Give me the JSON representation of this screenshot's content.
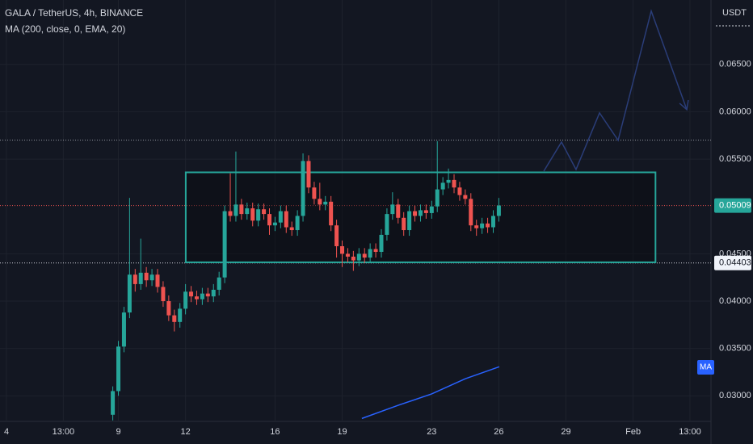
{
  "chart_data": {
    "type": "candlestick",
    "title": "GALA / TetherUS, 4h, BINANCE",
    "indicator": "MA (200, close, 0, EMA, 20)",
    "currency": "USDT",
    "ma_tag": "MA",
    "up_color": "#26a69a",
    "down_color": "#ef5350",
    "grid": true,
    "xlim": [
      3.71,
      35.48
    ],
    "ylim": [
      0.0273,
      0.0718
    ],
    "xticks": [
      4,
      {
        "value": 6.54,
        "label": "13:00"
      },
      9,
      12,
      16,
      19,
      23,
      26,
      29,
      {
        "value": 32,
        "label": "Feb"
      },
      {
        "value": 34.54,
        "label": "13:00"
      }
    ],
    "yticks": [
      {
        "value": 0.03,
        "label": "0.03000"
      },
      {
        "value": 0.035,
        "label": "0.03500"
      },
      {
        "value": 0.04,
        "label": "0.04000"
      },
      {
        "value": 0.045,
        "label": "0.04500"
      },
      {
        "value": 0.055,
        "label": "0.05500"
      },
      {
        "value": 0.06,
        "label": "0.06000"
      },
      {
        "value": 0.065,
        "label": "0.06500"
      }
    ],
    "x": [
      8.75,
      9,
      9.25,
      9.5,
      9.75,
      10,
      10.25,
      10.5,
      10.75,
      11,
      11.25,
      11.5,
      11.75,
      12,
      12.25,
      12.5,
      12.75,
      13,
      13.25,
      13.5,
      13.75,
      14,
      14.25,
      14.5,
      14.75,
      15,
      15.25,
      15.5,
      15.75,
      16,
      16.25,
      16.5,
      16.75,
      17,
      17.25,
      17.5,
      17.75,
      18,
      18.25,
      18.5,
      18.75,
      19,
      19.25,
      19.5,
      19.75,
      20,
      20.25,
      20.5,
      20.75,
      21,
      21.25,
      21.5,
      21.75,
      22,
      22.25,
      22.5,
      22.75,
      23,
      23.25,
      23.5,
      23.75,
      24,
      24.25,
      24.5,
      24.75,
      25,
      25.25,
      25.5,
      25.75,
      26
    ],
    "open": [
      0.028,
      0.0305,
      0.0352,
      0.0388,
      0.0428,
      0.0418,
      0.043,
      0.0422,
      0.0428,
      0.0415,
      0.04,
      0.0385,
      0.0378,
      0.0392,
      0.041,
      0.0405,
      0.0402,
      0.0408,
      0.0405,
      0.0412,
      0.0425,
      0.0495,
      0.049,
      0.0502,
      0.0492,
      0.0498,
      0.0485,
      0.0497,
      0.0492,
      0.048,
      0.0483,
      0.0495,
      0.0478,
      0.0475,
      0.049,
      0.0548,
      0.052,
      0.0508,
      0.0502,
      0.0505,
      0.048,
      0.0458,
      0.045,
      0.0447,
      0.0443,
      0.045,
      0.0446,
      0.0455,
      0.0452,
      0.047,
      0.0492,
      0.0502,
      0.0488,
      0.0475,
      0.0495,
      0.049,
      0.0496,
      0.0493,
      0.05,
      0.0518,
      0.0525,
      0.0528,
      0.052,
      0.0512,
      0.0508,
      0.048,
      0.0477,
      0.0482,
      0.0478,
      0.049
    ],
    "high": [
      0.031,
      0.0358,
      0.0394,
      0.0509,
      0.0434,
      0.0466,
      0.0436,
      0.0434,
      0.0434,
      0.0421,
      0.0406,
      0.0391,
      0.0398,
      0.0418,
      0.0416,
      0.0411,
      0.0414,
      0.0414,
      0.0418,
      0.0431,
      0.0501,
      0.0535,
      0.0558,
      0.0508,
      0.0504,
      0.0504,
      0.0503,
      0.0503,
      0.0498,
      0.0489,
      0.0501,
      0.0501,
      0.0484,
      0.0496,
      0.0556,
      0.0554,
      0.0526,
      0.0525,
      0.0511,
      0.0511,
      0.0486,
      0.0464,
      0.0456,
      0.0453,
      0.0456,
      0.0456,
      0.0461,
      0.0461,
      0.0476,
      0.0498,
      0.0515,
      0.0508,
      0.0494,
      0.0501,
      0.0501,
      0.0502,
      0.0502,
      0.0506,
      0.0569,
      0.0531,
      0.054,
      0.0534,
      0.0526,
      0.0518,
      0.0514,
      0.0486,
      0.0488,
      0.0488,
      0.0496,
      0.0509
    ],
    "low": [
      0.0274,
      0.03,
      0.0346,
      0.0382,
      0.041,
      0.0412,
      0.0415,
      0.0416,
      0.0409,
      0.0394,
      0.0379,
      0.0368,
      0.0372,
      0.0386,
      0.0399,
      0.0396,
      0.0396,
      0.0399,
      0.0399,
      0.0406,
      0.0419,
      0.0484,
      0.0484,
      0.0486,
      0.0486,
      0.0479,
      0.0479,
      0.0486,
      0.047,
      0.0474,
      0.0477,
      0.0472,
      0.0469,
      0.0469,
      0.0484,
      0.0514,
      0.0502,
      0.0496,
      0.0496,
      0.0474,
      0.0446,
      0.0436,
      0.0441,
      0.0432,
      0.0437,
      0.044,
      0.044,
      0.0446,
      0.0446,
      0.0464,
      0.0486,
      0.0482,
      0.0469,
      0.0469,
      0.0484,
      0.0484,
      0.0487,
      0.0487,
      0.0494,
      0.0512,
      0.0519,
      0.0514,
      0.0506,
      0.0502,
      0.0474,
      0.0469,
      0.0471,
      0.0472,
      0.0472,
      0.0484
    ],
    "close": [
      0.0305,
      0.0352,
      0.0388,
      0.0428,
      0.0418,
      0.043,
      0.0422,
      0.0428,
      0.0415,
      0.04,
      0.0385,
      0.0378,
      0.0392,
      0.041,
      0.0405,
      0.0402,
      0.0408,
      0.0405,
      0.0412,
      0.0425,
      0.0495,
      0.049,
      0.0502,
      0.0492,
      0.0498,
      0.0485,
      0.0497,
      0.0492,
      0.048,
      0.0483,
      0.0495,
      0.0478,
      0.0475,
      0.049,
      0.0548,
      0.052,
      0.0508,
      0.0502,
      0.0505,
      0.048,
      0.0458,
      0.045,
      0.0447,
      0.0443,
      0.045,
      0.0446,
      0.0455,
      0.0452,
      0.047,
      0.0492,
      0.0502,
      0.0488,
      0.0475,
      0.0495,
      0.049,
      0.0496,
      0.0493,
      0.05,
      0.0518,
      0.0525,
      0.0528,
      0.052,
      0.0512,
      0.0508,
      0.048,
      0.0477,
      0.0482,
      0.0478,
      0.049,
      0.0501
    ],
    "last_price": 0.05009,
    "box": {
      "x": [
        12.01,
        33.0
      ],
      "y": [
        0.0441,
        0.0536
      ],
      "color": "#26a69a"
    },
    "levels": [
      {
        "value": 0.057,
        "color": "#9598a1"
      },
      {
        "value": 0.04403,
        "color": "#d1d4dc"
      }
    ],
    "level_tag": 0.04403,
    "projection": {
      "x": [
        28.01,
        28.8,
        29.45,
        30.5,
        31.33,
        32.81,
        34.4
      ],
      "y": [
        0.05373,
        0.0568,
        0.0539,
        0.05988,
        0.05698,
        0.07063,
        0.06022
      ],
      "color": "#2a3d78"
    },
    "ma": {
      "x": [
        19.88,
        21.5,
        23.0,
        24.5,
        26.02
      ],
      "y": [
        0.02761,
        0.029,
        0.0302,
        0.0318,
        0.03307
      ],
      "color": "#2962ff"
    }
  }
}
